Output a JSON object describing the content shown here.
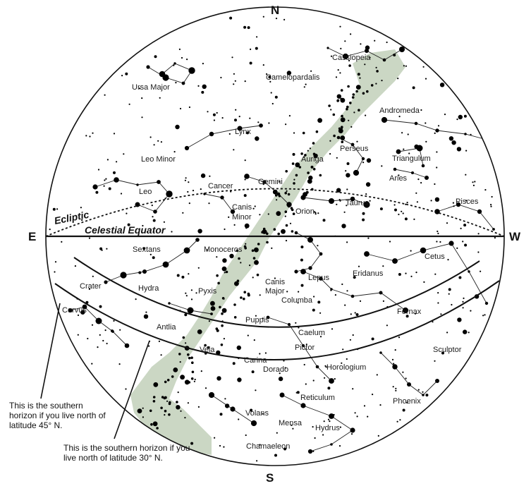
{
  "compass": {
    "north": "N",
    "south": "S",
    "east": "E",
    "west": "W"
  },
  "circle_labels": {
    "ecliptic": "Ecliptic",
    "celestial_equator": "Celestial Equator"
  },
  "constellations": {
    "cassiopeia": "Cassiopeia",
    "ursa_major": "Ursa Major",
    "camelopardalis": "Camelopardalis",
    "andromeda": "Andromeda",
    "lynx": "Lynx",
    "perseus": "Perseus",
    "triangulum": "Triangulum",
    "leo_minor": "Leo Minor",
    "auriga": "Auriga",
    "aries": "Aries",
    "leo": "Leo",
    "cancer": "Cancer",
    "gemini": "Gemini",
    "taurus": "Taurus",
    "pisces": "Pisces",
    "canis_minor_1": "Canis",
    "canis_minor_2": "Minor",
    "orion": "Orion",
    "sextans": "Sextans",
    "monoceros": "Monoceros",
    "cetus": "Cetus",
    "lepus": "Lepus",
    "eridanus": "Eridanus",
    "crater": "Crater",
    "hydra": "Hydra",
    "canis_major_1": "Canis",
    "canis_major_2": "Major",
    "pyxis": "Pyxis",
    "columba": "Columba",
    "corvus": "Corvus",
    "fornax": "Fornax",
    "antlia": "Antlia",
    "puppis": "Puppis",
    "caelum": "Caelum",
    "vela": "Vela",
    "pictor": "Pictor",
    "sculptor": "Sculptor",
    "carina": "Carina",
    "dorado": "Dorado",
    "horologium": "Horologium",
    "reticulum": "Reticulum",
    "phoenix": "Phoenix",
    "volans": "Volans",
    "mensa": "Mensa",
    "hydrus": "Hydrus",
    "chamaeleon": "Chamaeleon"
  },
  "notes": {
    "horizon_45": "This is the southern horizon if you live north of latitude 45° N.",
    "horizon_30": "This is the southern horizon if you live north of latitude 30° N."
  },
  "colors": {
    "milky_way": "#b9c9b0",
    "stars": "#000000",
    "lines": "#222222",
    "background": "#ffffff"
  }
}
